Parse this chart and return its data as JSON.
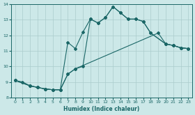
{
  "xlabel": "Humidex (Indice chaleur)",
  "ylabel": "",
  "xlim": [
    -0.5,
    23.5
  ],
  "ylim": [
    8,
    14.0
  ],
  "yticks": [
    8,
    9,
    10,
    11,
    12,
    13,
    14
  ],
  "xticks": [
    0,
    1,
    2,
    3,
    4,
    5,
    6,
    7,
    8,
    9,
    10,
    11,
    12,
    13,
    14,
    15,
    16,
    17,
    18,
    19,
    20,
    21,
    22,
    23
  ],
  "bg_color": "#cce8e8",
  "line_color": "#1a6666",
  "grid_color": "#aacccc",
  "line1_x": [
    0,
    1,
    2,
    3,
    4,
    5,
    6,
    7,
    8,
    19,
    20,
    21,
    22,
    23
  ],
  "line1_y": [
    9.1,
    9.0,
    8.75,
    8.65,
    8.55,
    8.5,
    8.5,
    9.5,
    9.85,
    12.15,
    11.45,
    11.35,
    11.2,
    11.15
  ],
  "line2_x": [
    0,
    2,
    3,
    4,
    5,
    6,
    7,
    8,
    9,
    10,
    11,
    12,
    13,
    14,
    15,
    16,
    17,
    18,
    20,
    21,
    22,
    23
  ],
  "line2_y": [
    9.1,
    8.75,
    8.65,
    8.55,
    8.5,
    8.5,
    9.5,
    9.85,
    10.0,
    13.05,
    12.8,
    13.15,
    13.85,
    13.45,
    13.05,
    13.05,
    12.9,
    12.15,
    11.45,
    11.35,
    11.2,
    11.15
  ],
  "line3_x": [
    0,
    2,
    3,
    4,
    5,
    6,
    7,
    8,
    9,
    10,
    11,
    12,
    13,
    14,
    15,
    16,
    17,
    18,
    20,
    21,
    22,
    23
  ],
  "line3_y": [
    9.1,
    8.75,
    8.65,
    8.55,
    8.5,
    8.5,
    11.55,
    11.15,
    12.2,
    13.05,
    12.8,
    13.15,
    13.85,
    13.45,
    13.05,
    13.05,
    12.9,
    12.15,
    11.45,
    11.35,
    11.2,
    11.15
  ]
}
